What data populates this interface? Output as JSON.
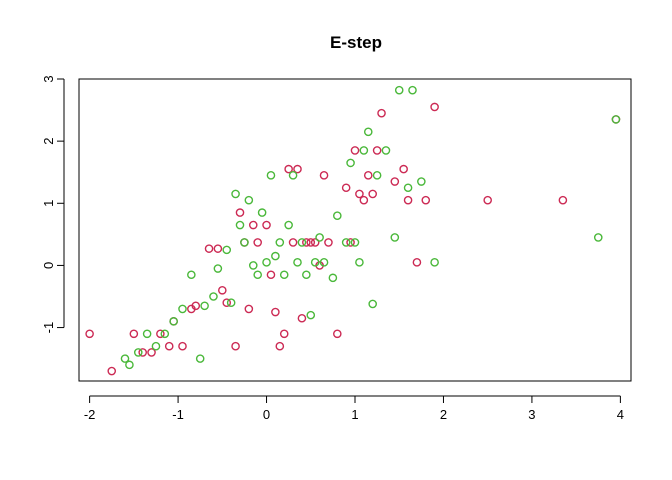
{
  "chart_data": {
    "type": "scatter",
    "title": "E-step",
    "xlabel": "",
    "ylabel": "",
    "xlim": [
      -2.12,
      4.12
    ],
    "ylim": [
      -1.86,
      3.0
    ],
    "x_ticks": [
      -2,
      -1,
      0,
      1,
      2,
      3,
      4
    ],
    "y_ticks": [
      -1,
      0,
      1,
      2,
      3
    ],
    "x_tick_labels": [
      "-2",
      "-1",
      "0",
      "1",
      "2",
      "3",
      "4"
    ],
    "y_tick_labels": [
      "-1",
      "0",
      "1",
      "2",
      "3"
    ],
    "grid": false,
    "legend": "none",
    "colors": {
      "cluster1": "#cc2a54",
      "cluster2": "#4ab83a"
    },
    "series": [
      {
        "color": "#cc2a54",
        "points": [
          [
            -2.0,
            -1.1
          ],
          [
            -1.75,
            -1.7
          ],
          [
            -1.5,
            -1.1
          ],
          [
            -1.4,
            -1.4
          ],
          [
            -1.3,
            -1.4
          ],
          [
            -1.2,
            -1.1
          ],
          [
            -1.1,
            -1.3
          ],
          [
            -1.05,
            -0.9
          ],
          [
            -0.95,
            -1.3
          ],
          [
            -0.85,
            -0.7
          ],
          [
            -0.8,
            -0.65
          ],
          [
            -0.65,
            0.27
          ],
          [
            -0.55,
            0.27
          ],
          [
            -0.5,
            -0.4
          ],
          [
            -0.45,
            -0.6
          ],
          [
            -0.35,
            -1.3
          ],
          [
            -0.3,
            0.85
          ],
          [
            -0.25,
            0.37
          ],
          [
            -0.2,
            -0.7
          ],
          [
            -0.15,
            0.65
          ],
          [
            -0.1,
            0.37
          ],
          [
            0.0,
            0.65
          ],
          [
            0.05,
            -0.15
          ],
          [
            0.1,
            -0.75
          ],
          [
            0.15,
            -1.3
          ],
          [
            0.2,
            -1.1
          ],
          [
            0.25,
            1.55
          ],
          [
            0.3,
            0.37
          ],
          [
            0.35,
            1.55
          ],
          [
            0.4,
            -0.85
          ],
          [
            0.45,
            0.37
          ],
          [
            0.5,
            0.37
          ],
          [
            0.55,
            0.37
          ],
          [
            0.6,
            0.0
          ],
          [
            0.65,
            1.45
          ],
          [
            0.7,
            0.37
          ],
          [
            0.8,
            -1.1
          ],
          [
            0.9,
            1.25
          ],
          [
            0.95,
            0.37
          ],
          [
            1.0,
            1.85
          ],
          [
            1.05,
            1.15
          ],
          [
            1.1,
            1.05
          ],
          [
            1.15,
            1.45
          ],
          [
            1.2,
            1.15
          ],
          [
            1.25,
            1.85
          ],
          [
            1.3,
            2.45
          ],
          [
            1.45,
            1.35
          ],
          [
            1.55,
            1.55
          ],
          [
            1.6,
            1.05
          ],
          [
            1.7,
            0.05
          ],
          [
            1.8,
            1.05
          ],
          [
            1.9,
            2.55
          ],
          [
            2.5,
            1.05
          ],
          [
            3.35,
            1.05
          ],
          [
            3.95,
            2.35
          ]
        ]
      },
      {
        "color": "#4ab83a",
        "points": [
          [
            -1.6,
            -1.5
          ],
          [
            -1.55,
            -1.6
          ],
          [
            -1.45,
            -1.4
          ],
          [
            -1.35,
            -1.1
          ],
          [
            -1.25,
            -1.3
          ],
          [
            -1.15,
            -1.1
          ],
          [
            -1.05,
            -0.9
          ],
          [
            -0.95,
            -0.7
          ],
          [
            -0.85,
            -0.15
          ],
          [
            -0.75,
            -1.5
          ],
          [
            -0.7,
            -0.65
          ],
          [
            -0.6,
            -0.5
          ],
          [
            -0.55,
            -0.05
          ],
          [
            -0.45,
            0.25
          ],
          [
            -0.4,
            -0.6
          ],
          [
            -0.35,
            1.15
          ],
          [
            -0.3,
            0.65
          ],
          [
            -0.25,
            0.37
          ],
          [
            -0.2,
            1.05
          ],
          [
            -0.15,
            0.0
          ],
          [
            -0.1,
            -0.15
          ],
          [
            -0.05,
            0.85
          ],
          [
            0.0,
            0.05
          ],
          [
            0.05,
            1.45
          ],
          [
            0.1,
            0.15
          ],
          [
            0.15,
            0.37
          ],
          [
            0.2,
            -0.15
          ],
          [
            0.25,
            0.65
          ],
          [
            0.3,
            1.45
          ],
          [
            0.35,
            0.05
          ],
          [
            0.4,
            0.37
          ],
          [
            0.45,
            -0.15
          ],
          [
            0.5,
            -0.8
          ],
          [
            0.55,
            0.05
          ],
          [
            0.6,
            0.45
          ],
          [
            0.65,
            0.05
          ],
          [
            0.75,
            -0.2
          ],
          [
            0.8,
            0.8
          ],
          [
            0.9,
            0.37
          ],
          [
            0.95,
            1.65
          ],
          [
            1.0,
            0.37
          ],
          [
            1.05,
            0.05
          ],
          [
            1.1,
            1.85
          ],
          [
            1.15,
            2.15
          ],
          [
            1.2,
            -0.62
          ],
          [
            1.25,
            1.45
          ],
          [
            1.35,
            1.85
          ],
          [
            1.45,
            0.45
          ],
          [
            1.5,
            2.82
          ],
          [
            1.6,
            1.25
          ],
          [
            1.65,
            2.82
          ],
          [
            1.75,
            1.35
          ],
          [
            1.9,
            0.05
          ],
          [
            3.75,
            0.45
          ],
          [
            3.95,
            2.35
          ]
        ]
      }
    ]
  }
}
